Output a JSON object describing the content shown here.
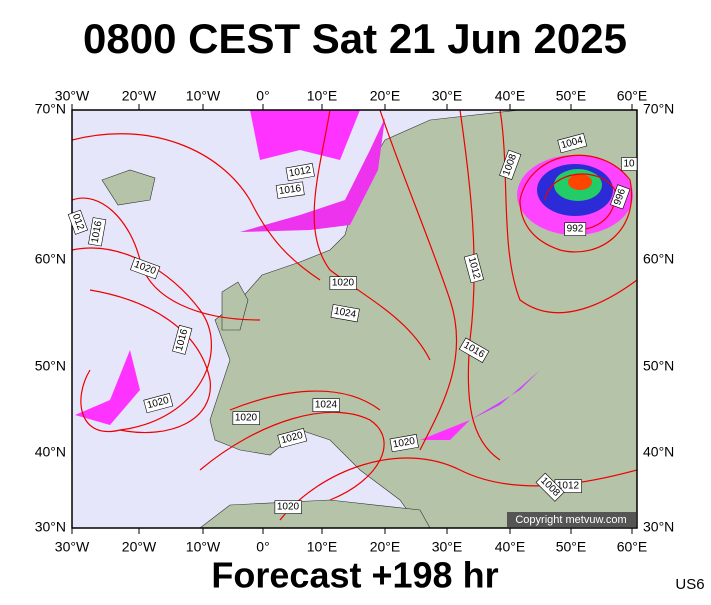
{
  "header": {
    "title": "0800 CEST Sat 21 Jun 2025"
  },
  "map": {
    "lon_labels": [
      "30°W",
      "20°W",
      "10°W",
      "0°",
      "10°E",
      "20°E",
      "30°E",
      "40°E",
      "50°E",
      "60°E"
    ],
    "lat_labels": [
      "70°N",
      "60°N",
      "50°N",
      "40°N",
      "30°N"
    ],
    "isobar_labels": [
      "1012",
      "1016",
      "012",
      "1016",
      "1020",
      "1020",
      "1024",
      "1016",
      "1020",
      "1020",
      "1024",
      "1020",
      "1020",
      "1020",
      "1012",
      "1016",
      "1008",
      "1004",
      "10",
      "996",
      "992",
      "1012",
      "1008"
    ],
    "copyright": "Copyright metvuw.com"
  },
  "footer": {
    "forecast": "Forecast +198 hr",
    "code": "US6"
  }
}
